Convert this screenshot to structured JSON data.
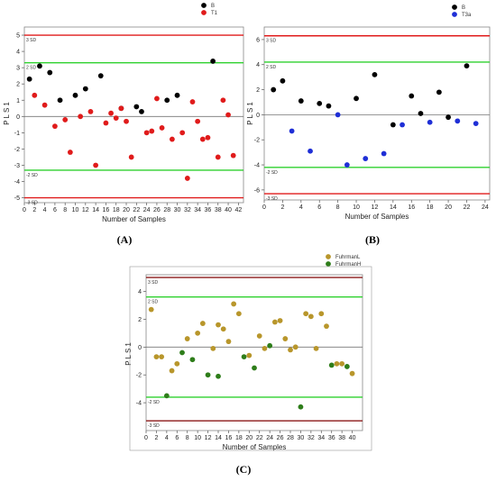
{
  "chart_data": [
    {
      "panel_label": "(A)",
      "type": "scatter",
      "xlabel": "Number of Samples",
      "ylabel": "PLS1",
      "xlim": [
        0,
        43
      ],
      "ylim": [
        -5.3,
        5.5
      ],
      "xticks": [
        0,
        2,
        4,
        6,
        8,
        10,
        12,
        14,
        16,
        18,
        20,
        22,
        24,
        26,
        28,
        30,
        32,
        34,
        36,
        38,
        40,
        42
      ],
      "yticks": [
        -5,
        -4,
        -3,
        -2,
        -1,
        0,
        1,
        2,
        3,
        4,
        5
      ],
      "reference_lines": [
        {
          "label": "3 SD",
          "y": 5.0,
          "color": "#e01b1b"
        },
        {
          "label": "2 SD",
          "y": 3.3,
          "color": "#2fd12f"
        },
        {
          "label": "-2 SD",
          "y": -3.3,
          "color": "#2fd12f"
        },
        {
          "label": "-3 SD",
          "y": -5.0,
          "color": "#e01b1b"
        }
      ],
      "series": [
        {
          "name": "B",
          "color": "#000000",
          "x": [
            1,
            3,
            5,
            7,
            10,
            12,
            15,
            19,
            22,
            23,
            28,
            30,
            37
          ],
          "y": [
            2.3,
            3.1,
            2.7,
            1.0,
            1.3,
            1.7,
            2.5,
            0.5,
            0.6,
            0.3,
            1.0,
            1.3,
            3.4
          ]
        },
        {
          "name": "T1",
          "color": "#e01b1b",
          "x": [
            2,
            4,
            6,
            8,
            9,
            11,
            13,
            14,
            16,
            17,
            18,
            19,
            20,
            21,
            24,
            25,
            26,
            27,
            29,
            31,
            32,
            33,
            34,
            35,
            36,
            38,
            39,
            40,
            41
          ],
          "y": [
            1.3,
            0.7,
            -0.6,
            -0.2,
            -2.2,
            0.0,
            0.3,
            -3.0,
            -0.4,
            0.2,
            -0.1,
            0.5,
            -0.3,
            -2.5,
            -1.0,
            -0.9,
            1.1,
            -0.7,
            -1.4,
            -1.0,
            -3.8,
            0.9,
            -0.3,
            -1.4,
            -1.3,
            -2.5,
            1.0,
            0.1,
            -2.4
          ]
        }
      ]
    },
    {
      "panel_label": "(B)",
      "type": "scatter",
      "xlabel": "Number of Samples",
      "ylabel": "PLS1",
      "xlim": [
        0,
        24.5
      ],
      "ylim": [
        -6.8,
        7.0
      ],
      "xticks": [
        0,
        2,
        4,
        6,
        8,
        10,
        12,
        14,
        16,
        18,
        20,
        22,
        24
      ],
      "yticks": [
        -6,
        -4,
        -2,
        0,
        2,
        4,
        6
      ],
      "reference_lines": [
        {
          "label": "3 SD",
          "y": 6.3,
          "color": "#e01b1b"
        },
        {
          "label": "2 SD",
          "y": 4.2,
          "color": "#2fd12f"
        },
        {
          "label": "-2 SD",
          "y": -4.2,
          "color": "#2fd12f"
        },
        {
          "label": "-3 SD",
          "y": -6.3,
          "color": "#e01b1b"
        }
      ],
      "series": [
        {
          "name": "B",
          "color": "#000000",
          "x": [
            1,
            2,
            4,
            6,
            7,
            10,
            12,
            14,
            16,
            17,
            19,
            20,
            22
          ],
          "y": [
            2.0,
            2.7,
            1.1,
            0.9,
            0.7,
            1.3,
            3.2,
            -0.8,
            1.5,
            0.1,
            1.8,
            -0.2,
            3.9
          ]
        },
        {
          "name": "T3a",
          "color": "#1f2fd6",
          "x": [
            3,
            5,
            8,
            9,
            11,
            13,
            15,
            18,
            21,
            23
          ],
          "y": [
            -1.3,
            -2.9,
            0.0,
            -4.0,
            -3.5,
            -3.1,
            -0.8,
            -0.6,
            -0.5,
            -0.7
          ]
        }
      ]
    },
    {
      "panel_label": "(C)",
      "type": "scatter",
      "xlabel": "Number of Samples",
      "ylabel": "PLS1",
      "xlim": [
        0,
        42
      ],
      "ylim": [
        -6.0,
        5.2
      ],
      "xticks": [
        0,
        2,
        4,
        6,
        8,
        10,
        12,
        14,
        16,
        18,
        20,
        22,
        24,
        26,
        28,
        30,
        32,
        34,
        36,
        38,
        40
      ],
      "yticks": [
        -4,
        -2,
        0,
        2,
        4
      ],
      "reference_lines": [
        {
          "label": "3 SD",
          "y": 5.0,
          "color": "#8b1a1a"
        },
        {
          "label": "2 SD",
          "y": 3.6,
          "color": "#2fd12f"
        },
        {
          "label": "-2 SD",
          "y": -3.6,
          "color": "#2fd12f"
        },
        {
          "label": "-3 SD",
          "y": -5.3,
          "color": "#8b1a1a"
        }
      ],
      "series": [
        {
          "name": "FuhrmanL",
          "color": "#b8962b",
          "x": [
            1,
            2,
            3,
            5,
            6,
            8,
            10,
            11,
            13,
            14,
            15,
            16,
            17,
            18,
            20,
            22,
            23,
            25,
            26,
            27,
            28,
            29,
            31,
            32,
            33,
            34,
            35,
            37,
            38,
            40
          ],
          "y": [
            2.7,
            -0.7,
            -0.7,
            -1.7,
            -1.2,
            0.6,
            1.0,
            1.7,
            -0.1,
            1.6,
            1.3,
            0.4,
            3.1,
            2.4,
            -0.6,
            0.8,
            -0.1,
            1.8,
            1.9,
            0.6,
            -0.2,
            0.0,
            2.4,
            2.2,
            -0.1,
            2.4,
            1.5,
            -1.2,
            -1.2,
            -1.9
          ]
        },
        {
          "name": "FuhrmanH",
          "color": "#2e7d1a",
          "x": [
            4,
            7,
            9,
            12,
            14,
            19,
            21,
            24,
            30,
            36,
            39
          ],
          "y": [
            -3.5,
            -0.4,
            -0.9,
            -2.0,
            -2.1,
            -0.7,
            -1.5,
            0.1,
            -4.3,
            -1.3,
            -1.4
          ]
        }
      ]
    }
  ]
}
